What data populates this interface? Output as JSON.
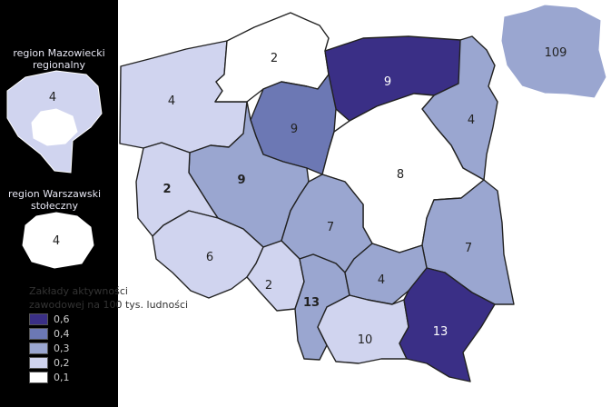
{
  "legend": {
    "title_line1": "Zakłady aktywności",
    "title_line2": "zawodowej na 100 tys. ludności",
    "items": [
      {
        "label": "0,6",
        "color": "#3a2f86"
      },
      {
        "label": "0,4",
        "color": "#6c78b4"
      },
      {
        "label": "0,3",
        "color": "#9aa6d0"
      },
      {
        "label": "0,2",
        "color": "#d0d4ef"
      },
      {
        "label": "0,1",
        "color": "#ffffff"
      }
    ]
  },
  "inset_mazowiecki": {
    "title_line1": "region Mazowiecki",
    "title_line2": "regionalny",
    "value": "4"
  },
  "inset_warszawski": {
    "title_line1": "region Warszawski",
    "title_line2": "stołeczny",
    "value": "4"
  },
  "inset_poland": {
    "value": "109"
  },
  "regions": [
    {
      "name": "zachodniopomorskie",
      "value": "4",
      "color": "#d0d4ef"
    },
    {
      "name": "pomorskie",
      "value": "2",
      "color": "#ffffff"
    },
    {
      "name": "warminsko-mazurskie",
      "value": "9",
      "color": "#3a2f86"
    },
    {
      "name": "podlaskie",
      "value": "4",
      "color": "#9aa6d0"
    },
    {
      "name": "kujawsko-pomorskie",
      "value": "9",
      "color": "#6c78b4"
    },
    {
      "name": "wielkopolskie",
      "value": "9",
      "color": "#9aa6d0"
    },
    {
      "name": "lubuskie",
      "value": "2",
      "color": "#d0d4ef"
    },
    {
      "name": "mazowieckie",
      "value": "8",
      "color": "#ffffff"
    },
    {
      "name": "lodzkie",
      "value": "7",
      "color": "#9aa6d0"
    },
    {
      "name": "lubelskie",
      "value": "7",
      "color": "#9aa6d0"
    },
    {
      "name": "dolnoslaskie",
      "value": "6",
      "color": "#d0d4ef"
    },
    {
      "name": "opolskie",
      "value": "2",
      "color": "#d0d4ef"
    },
    {
      "name": "slaskie",
      "value": "13",
      "color": "#9aa6d0"
    },
    {
      "name": "swietokrzyskie",
      "value": "4",
      "color": "#9aa6d0"
    },
    {
      "name": "malopolskie",
      "value": "10",
      "color": "#d0d4ef"
    },
    {
      "name": "podkarpackie",
      "value": "13",
      "color": "#3a2f86"
    }
  ]
}
